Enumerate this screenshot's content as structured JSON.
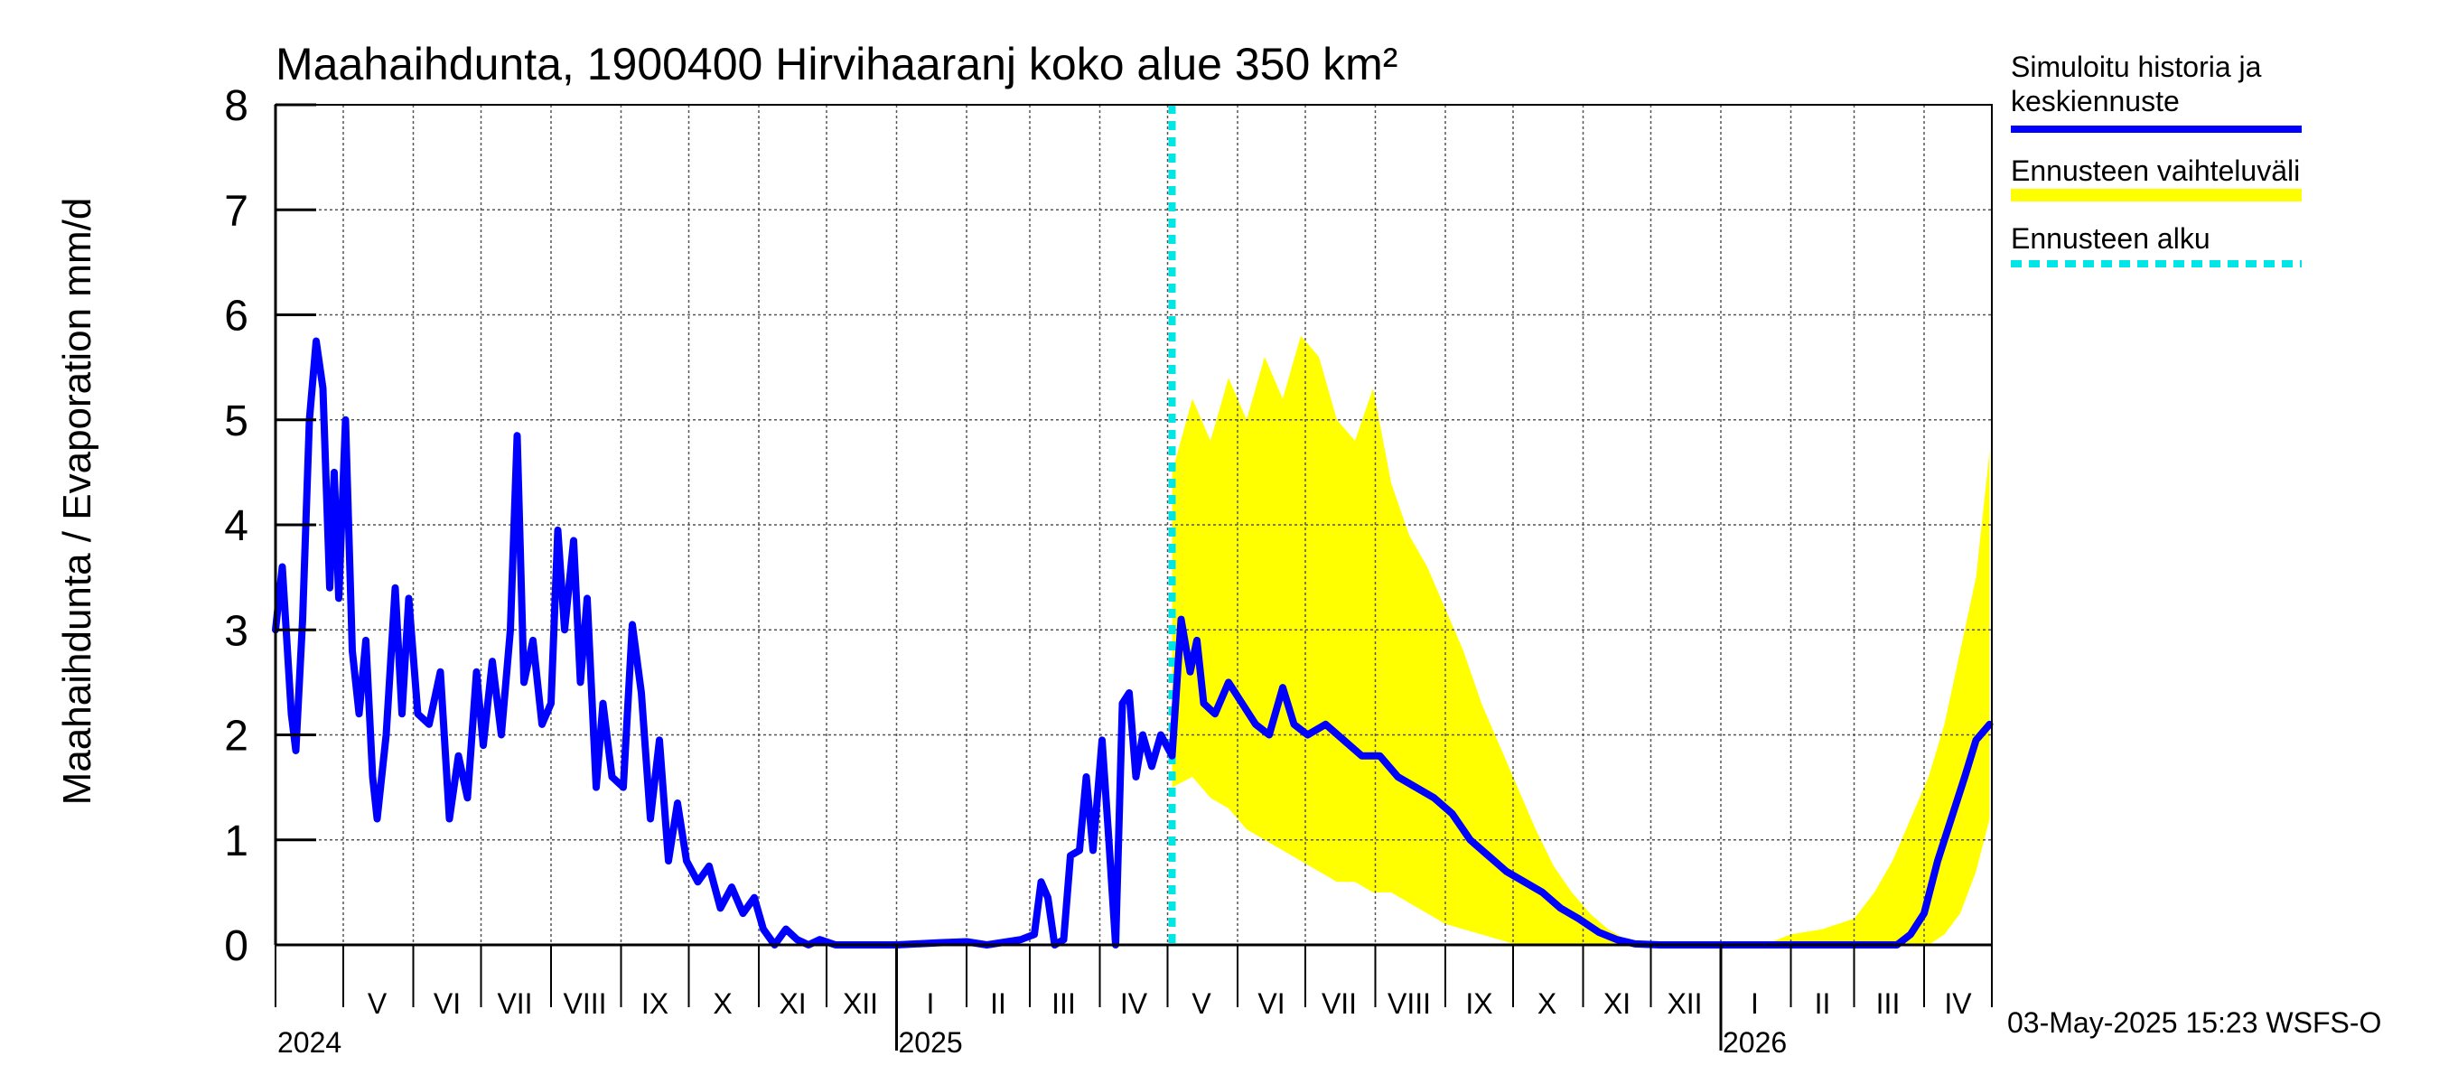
{
  "chart_data": {
    "type": "line",
    "title": "Maahaihdunta, 1900400 Hirvihaaranj koko alue 350 km²",
    "ylabel": "Maahaihdunta / Evaporation   mm/d",
    "ylim": [
      0,
      8
    ],
    "yticks": [
      "0",
      "1",
      "2",
      "3",
      "4",
      "5",
      "6",
      "7",
      "8"
    ],
    "x_range": [
      "2024-04-01",
      "2026-05-01"
    ],
    "grid": true,
    "legend_position": "right",
    "month_labels": [
      {
        "label": "V",
        "date": "2024-05-16"
      },
      {
        "label": "VI",
        "date": "2024-06-16"
      },
      {
        "label": "VII",
        "date": "2024-07-16"
      },
      {
        "label": "VIII",
        "date": "2024-08-16"
      },
      {
        "label": "IX",
        "date": "2024-09-16"
      },
      {
        "label": "X",
        "date": "2024-10-16"
      },
      {
        "label": "XI",
        "date": "2024-11-16"
      },
      {
        "label": "XII",
        "date": "2024-12-16"
      },
      {
        "label": "I",
        "date": "2025-01-16"
      },
      {
        "label": "II",
        "date": "2025-02-15"
      },
      {
        "label": "III",
        "date": "2025-03-16"
      },
      {
        "label": "IV",
        "date": "2025-04-16"
      },
      {
        "label": "V",
        "date": "2025-05-16"
      },
      {
        "label": "VI",
        "date": "2025-06-16"
      },
      {
        "label": "VII",
        "date": "2025-07-16"
      },
      {
        "label": "VIII",
        "date": "2025-08-16"
      },
      {
        "label": "IX",
        "date": "2025-09-16"
      },
      {
        "label": "X",
        "date": "2025-10-16"
      },
      {
        "label": "XI",
        "date": "2025-11-16"
      },
      {
        "label": "XII",
        "date": "2025-12-16"
      },
      {
        "label": "I",
        "date": "2026-01-16"
      },
      {
        "label": "II",
        "date": "2026-02-15"
      },
      {
        "label": "III",
        "date": "2026-03-16"
      },
      {
        "label": "IV",
        "date": "2026-04-16"
      }
    ],
    "year_labels": [
      {
        "label": "2024",
        "date": "2024-04-01"
      },
      {
        "label": "2025",
        "date": "2025-01-01"
      },
      {
        "label": "2026",
        "date": "2026-01-01"
      }
    ],
    "series": [
      {
        "name": "Simuloitu historia ja keskiennuste",
        "color": "#0000ff",
        "points": [
          [
            "2024-04-01",
            3.0
          ],
          [
            "2024-04-04",
            3.6
          ],
          [
            "2024-04-08",
            2.2
          ],
          [
            "2024-04-10",
            1.85
          ],
          [
            "2024-04-13",
            3.1
          ],
          [
            "2024-04-16",
            5.0
          ],
          [
            "2024-04-19",
            5.75
          ],
          [
            "2024-04-22",
            5.3
          ],
          [
            "2024-04-25",
            3.4
          ],
          [
            "2024-04-27",
            4.5
          ],
          [
            "2024-04-29",
            3.3
          ],
          [
            "2024-05-02",
            5.0
          ],
          [
            "2024-05-05",
            2.8
          ],
          [
            "2024-05-08",
            2.2
          ],
          [
            "2024-05-11",
            2.9
          ],
          [
            "2024-05-14",
            1.6
          ],
          [
            "2024-05-16",
            1.2
          ],
          [
            "2024-05-20",
            2.0
          ],
          [
            "2024-05-24",
            3.4
          ],
          [
            "2024-05-27",
            2.2
          ],
          [
            "2024-05-30",
            3.3
          ],
          [
            "2024-06-03",
            2.2
          ],
          [
            "2024-06-08",
            2.1
          ],
          [
            "2024-06-13",
            2.6
          ],
          [
            "2024-06-17",
            1.2
          ],
          [
            "2024-06-21",
            1.8
          ],
          [
            "2024-06-25",
            1.4
          ],
          [
            "2024-06-29",
            2.6
          ],
          [
            "2024-07-02",
            1.9
          ],
          [
            "2024-07-06",
            2.7
          ],
          [
            "2024-07-10",
            2.0
          ],
          [
            "2024-07-14",
            3.0
          ],
          [
            "2024-07-17",
            4.85
          ],
          [
            "2024-07-20",
            2.5
          ],
          [
            "2024-07-24",
            2.9
          ],
          [
            "2024-07-28",
            2.1
          ],
          [
            "2024-08-01",
            2.3
          ],
          [
            "2024-08-04",
            3.95
          ],
          [
            "2024-08-07",
            3.0
          ],
          [
            "2024-08-11",
            3.85
          ],
          [
            "2024-08-14",
            2.5
          ],
          [
            "2024-08-17",
            3.3
          ],
          [
            "2024-08-21",
            1.5
          ],
          [
            "2024-08-24",
            2.3
          ],
          [
            "2024-08-28",
            1.6
          ],
          [
            "2024-09-02",
            1.5
          ],
          [
            "2024-09-06",
            3.05
          ],
          [
            "2024-09-10",
            2.4
          ],
          [
            "2024-09-14",
            1.2
          ],
          [
            "2024-09-18",
            1.95
          ],
          [
            "2024-09-22",
            0.8
          ],
          [
            "2024-09-26",
            1.35
          ],
          [
            "2024-09-30",
            0.8
          ],
          [
            "2024-10-05",
            0.6
          ],
          [
            "2024-10-10",
            0.75
          ],
          [
            "2024-10-15",
            0.35
          ],
          [
            "2024-10-20",
            0.55
          ],
          [
            "2024-10-25",
            0.3
          ],
          [
            "2024-10-30",
            0.45
          ],
          [
            "2024-11-03",
            0.15
          ],
          [
            "2024-11-08",
            0.0
          ],
          [
            "2024-11-13",
            0.15
          ],
          [
            "2024-11-18",
            0.05
          ],
          [
            "2024-11-23",
            0.0
          ],
          [
            "2024-11-28",
            0.05
          ],
          [
            "2024-12-05",
            0.0
          ],
          [
            "2025-01-01",
            0.0
          ],
          [
            "2025-01-20",
            0.02
          ],
          [
            "2025-02-01",
            0.03
          ],
          [
            "2025-02-10",
            0.0
          ],
          [
            "2025-02-25",
            0.05
          ],
          [
            "2025-03-03",
            0.1
          ],
          [
            "2025-03-06",
            0.6
          ],
          [
            "2025-03-09",
            0.45
          ],
          [
            "2025-03-12",
            0.0
          ],
          [
            "2025-03-16",
            0.05
          ],
          [
            "2025-03-19",
            0.85
          ],
          [
            "2025-03-23",
            0.9
          ],
          [
            "2025-03-26",
            1.6
          ],
          [
            "2025-03-29",
            0.9
          ],
          [
            "2025-04-02",
            1.95
          ],
          [
            "2025-04-05",
            1.0
          ],
          [
            "2025-04-08",
            0.0
          ],
          [
            "2025-04-11",
            2.3
          ],
          [
            "2025-04-14",
            2.4
          ],
          [
            "2025-04-17",
            1.6
          ],
          [
            "2025-04-20",
            2.0
          ],
          [
            "2025-04-24",
            1.7
          ],
          [
            "2025-04-28",
            2.0
          ],
          [
            "2025-05-03",
            1.8
          ],
          [
            "2025-05-07",
            3.1
          ],
          [
            "2025-05-11",
            2.6
          ],
          [
            "2025-05-14",
            2.9
          ],
          [
            "2025-05-17",
            2.3
          ],
          [
            "2025-05-22",
            2.2
          ],
          [
            "2025-05-28",
            2.5
          ],
          [
            "2025-06-03",
            2.3
          ],
          [
            "2025-06-09",
            2.1
          ],
          [
            "2025-06-15",
            2.0
          ],
          [
            "2025-06-21",
            2.45
          ],
          [
            "2025-06-26",
            2.1
          ],
          [
            "2025-07-02",
            2.0
          ],
          [
            "2025-07-10",
            2.1
          ],
          [
            "2025-07-18",
            1.95
          ],
          [
            "2025-07-26",
            1.8
          ],
          [
            "2025-08-03",
            1.8
          ],
          [
            "2025-08-11",
            1.6
          ],
          [
            "2025-08-19",
            1.5
          ],
          [
            "2025-08-27",
            1.4
          ],
          [
            "2025-09-04",
            1.25
          ],
          [
            "2025-09-12",
            1.0
          ],
          [
            "2025-09-20",
            0.85
          ],
          [
            "2025-09-28",
            0.7
          ],
          [
            "2025-10-06",
            0.6
          ],
          [
            "2025-10-14",
            0.5
          ],
          [
            "2025-10-22",
            0.35
          ],
          [
            "2025-10-30",
            0.25
          ],
          [
            "2025-11-08",
            0.12
          ],
          [
            "2025-11-16",
            0.05
          ],
          [
            "2025-11-24",
            0.01
          ],
          [
            "2025-12-05",
            0.0
          ],
          [
            "2026-03-20",
            0.0
          ],
          [
            "2026-03-26",
            0.1
          ],
          [
            "2026-04-01",
            0.3
          ],
          [
            "2026-04-07",
            0.8
          ],
          [
            "2026-04-13",
            1.2
          ],
          [
            "2026-04-19",
            1.6
          ],
          [
            "2026-04-24",
            1.95
          ],
          [
            "2026-04-30",
            2.1
          ]
        ]
      },
      {
        "name": "Ennusteen vaihteluväli",
        "color": "#ffff00",
        "band": [
          [
            "2025-05-03",
            1.5,
            4.5
          ],
          [
            "2025-05-12",
            1.6,
            5.2
          ],
          [
            "2025-05-20",
            1.4,
            4.8
          ],
          [
            "2025-05-28",
            1.3,
            5.4
          ],
          [
            "2025-06-05",
            1.1,
            5.0
          ],
          [
            "2025-06-13",
            1.0,
            5.6
          ],
          [
            "2025-06-21",
            0.9,
            5.2
          ],
          [
            "2025-06-29",
            0.8,
            5.8
          ],
          [
            "2025-07-07",
            0.7,
            5.6
          ],
          [
            "2025-07-15",
            0.6,
            5.0
          ],
          [
            "2025-07-23",
            0.6,
            4.8
          ],
          [
            "2025-07-31",
            0.5,
            5.3
          ],
          [
            "2025-08-08",
            0.5,
            4.4
          ],
          [
            "2025-08-16",
            0.4,
            3.9
          ],
          [
            "2025-08-24",
            0.3,
            3.6
          ],
          [
            "2025-09-01",
            0.2,
            3.2
          ],
          [
            "2025-09-09",
            0.15,
            2.8
          ],
          [
            "2025-09-17",
            0.1,
            2.3
          ],
          [
            "2025-09-25",
            0.05,
            1.9
          ],
          [
            "2025-10-03",
            0.0,
            1.5
          ],
          [
            "2025-10-11",
            0.0,
            1.1
          ],
          [
            "2025-10-19",
            0.0,
            0.75
          ],
          [
            "2025-10-27",
            0.0,
            0.5
          ],
          [
            "2025-11-04",
            0.0,
            0.3
          ],
          [
            "2025-11-12",
            0.0,
            0.15
          ],
          [
            "2025-11-20",
            0.0,
            0.05
          ],
          [
            "2025-12-01",
            0.0,
            0.0
          ],
          [
            "2026-01-20",
            0.0,
            0.0
          ],
          [
            "2026-02-01",
            0.0,
            0.1
          ],
          [
            "2026-02-15",
            0.0,
            0.15
          ],
          [
            "2026-03-01",
            0.0,
            0.25
          ],
          [
            "2026-03-10",
            0.0,
            0.5
          ],
          [
            "2026-03-18",
            0.0,
            0.8
          ],
          [
            "2026-03-26",
            0.0,
            1.2
          ],
          [
            "2026-04-03",
            0.0,
            1.6
          ],
          [
            "2026-04-10",
            0.1,
            2.1
          ],
          [
            "2026-04-17",
            0.3,
            2.8
          ],
          [
            "2026-04-24",
            0.7,
            3.5
          ],
          [
            "2026-04-30",
            1.2,
            4.7
          ]
        ]
      },
      {
        "name": "Ennusteen alku",
        "color": "#00e5e5",
        "x": "2025-05-03"
      }
    ],
    "footer": "03-May-2025 15:23 WSFS-O"
  }
}
